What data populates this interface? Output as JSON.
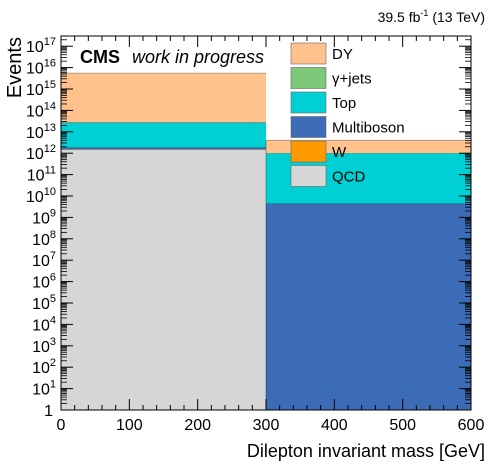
{
  "header": {
    "lumi_value": "39.5 fb",
    "lumi_exponent": "-1",
    "lumi_energy": "(13 TeV)"
  },
  "label": {
    "experiment": "CMS",
    "status": "work in progress"
  },
  "chart_data": {
    "type": "bar",
    "stacked": true,
    "x_bin_edges": [
      0,
      300,
      600
    ],
    "xlabel": "Dilepton invariant mass [GeV]",
    "ylabel": "Events",
    "xlim": [
      0,
      600
    ],
    "ylim": [
      1,
      3e+17
    ],
    "y_scale": "log",
    "x_ticks": [
      0,
      100,
      200,
      300,
      400,
      500,
      600
    ],
    "y_tick_exponents": [
      0,
      1,
      2,
      3,
      4,
      5,
      6,
      7,
      8,
      9,
      10,
      11,
      12,
      13,
      14,
      15,
      16,
      17
    ],
    "legend_placement": "top-right",
    "series": [
      {
        "name": "QCD",
        "color": "#d6d6d6",
        "values": [
          1500000000000.0,
          0
        ]
      },
      {
        "name": "W",
        "color": "#ff9a00",
        "values": [
          50000000000.0,
          0
        ]
      },
      {
        "name": "Multiboson",
        "color": "#3b6cb5",
        "values": [
          300000000000.0,
          4500000000.0
        ]
      },
      {
        "name": "Top",
        "color": "#00d0d4",
        "values": [
          25000000000000.0,
          1000000000000.0
        ]
      },
      {
        "name": "γ+jets",
        "color": "#7ec87a",
        "values": [
          1000000000000.0,
          0
        ]
      },
      {
        "name": "DY",
        "color": "#ffc28c",
        "values": [
          5500000000000000.0,
          3000000000000.0
        ]
      }
    ]
  }
}
